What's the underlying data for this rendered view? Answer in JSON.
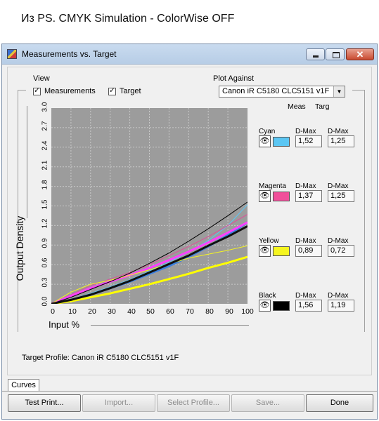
{
  "caption": "Из PS. CMYK Simulation - ColorWise OFF",
  "window": {
    "title": "Measurements vs. Target",
    "minimize_glyph": "",
    "maximize_glyph": "",
    "close_glyph": "✕"
  },
  "view": {
    "label": "View",
    "measurements_label": "Measurements",
    "measurements_checked": true,
    "target_label": "Target",
    "target_checked": true
  },
  "plot_against": {
    "label": "Plot Against",
    "value": "Canon iR C5180 CLC5151 v1F"
  },
  "columns": {
    "meas": "Meas",
    "targ": "Targ"
  },
  "channels": [
    {
      "name": "Cyan",
      "color": "#5bc6f3",
      "meas_label": "D-Max",
      "targ_label": "D-Max",
      "meas": "1,52",
      "targ": "1,25"
    },
    {
      "name": "Magenta",
      "color": "#f04f9a",
      "meas_label": "D-Max",
      "targ_label": "D-Max",
      "meas": "1,37",
      "targ": "1,25"
    },
    {
      "name": "Yellow",
      "color": "#f5f51f",
      "meas_label": "D-Max",
      "targ_label": "D-Max",
      "meas": "0,89",
      "targ": "0,72"
    },
    {
      "name": "Black",
      "color": "#000000",
      "meas_label": "D-Max",
      "targ_label": "D-Max",
      "meas": "1,56",
      "targ": "1,19"
    }
  ],
  "eye_glyph": "👁",
  "target_profile": "Target Profile: Canon iR C5180 CLC5151 v1F",
  "tab": "Curves",
  "buttons": {
    "test_print": "Test Print...",
    "import": "Import...",
    "select_profile": "Select Profile...",
    "save": "Save...",
    "done": "Done"
  },
  "chart_data": {
    "type": "line",
    "xlabel": "Input %",
    "ylabel": "Output Density",
    "xlim": [
      0,
      100
    ],
    "ylim": [
      0,
      3.0
    ],
    "x_ticks": [
      "0",
      "10",
      "20",
      "30",
      "40",
      "50",
      "60",
      "70",
      "80",
      "90",
      "100"
    ],
    "y_ticks": [
      "0.0",
      "0.3",
      "0.6",
      "0.9",
      "1.2",
      "1.5",
      "1.8",
      "2.1",
      "2.4",
      "2.7",
      "3.0"
    ],
    "grid": true,
    "background": "#9c9c9c",
    "x": [
      0,
      10,
      20,
      30,
      40,
      50,
      60,
      70,
      80,
      90,
      100
    ],
    "series": [
      {
        "name": "Cyan",
        "kind": "measurement",
        "color": "#5bc6f3",
        "values": [
          0,
          0.07,
          0.16,
          0.26,
          0.37,
          0.5,
          0.64,
          0.79,
          0.97,
          1.2,
          1.52
        ]
      },
      {
        "name": "Cyan",
        "kind": "target",
        "color": "#3a7fe0",
        "values": [
          0,
          0.06,
          0.14,
          0.24,
          0.34,
          0.46,
          0.58,
          0.72,
          0.88,
          1.05,
          1.25
        ]
      },
      {
        "name": "Magenta",
        "kind": "measurement",
        "color": "#e04f9a",
        "values": [
          0,
          0.14,
          0.28,
          0.38,
          0.48,
          0.6,
          0.74,
          0.88,
          1.03,
          1.2,
          1.37
        ]
      },
      {
        "name": "Magenta",
        "kind": "target",
        "color": "#ff40ff",
        "values": [
          0,
          0.12,
          0.24,
          0.34,
          0.44,
          0.55,
          0.67,
          0.8,
          0.94,
          1.09,
          1.25
        ]
      },
      {
        "name": "Yellow",
        "kind": "measurement",
        "color": "#f5f51f",
        "values": [
          0,
          0.18,
          0.3,
          0.36,
          0.44,
          0.52,
          0.61,
          0.7,
          0.76,
          0.82,
          0.89
        ]
      },
      {
        "name": "Yellow",
        "kind": "target",
        "color": "#ffff00",
        "values": [
          0,
          0.04,
          0.1,
          0.16,
          0.23,
          0.3,
          0.38,
          0.46,
          0.55,
          0.63,
          0.72
        ]
      },
      {
        "name": "Black",
        "kind": "measurement",
        "color": "#000000",
        "values": [
          0,
          0.1,
          0.22,
          0.34,
          0.47,
          0.62,
          0.78,
          0.96,
          1.15,
          1.35,
          1.56
        ]
      },
      {
        "name": "Black",
        "kind": "target",
        "color": "#111111",
        "values": [
          0,
          0.06,
          0.14,
          0.24,
          0.35,
          0.48,
          0.61,
          0.74,
          0.89,
          1.03,
          1.19
        ]
      }
    ]
  }
}
